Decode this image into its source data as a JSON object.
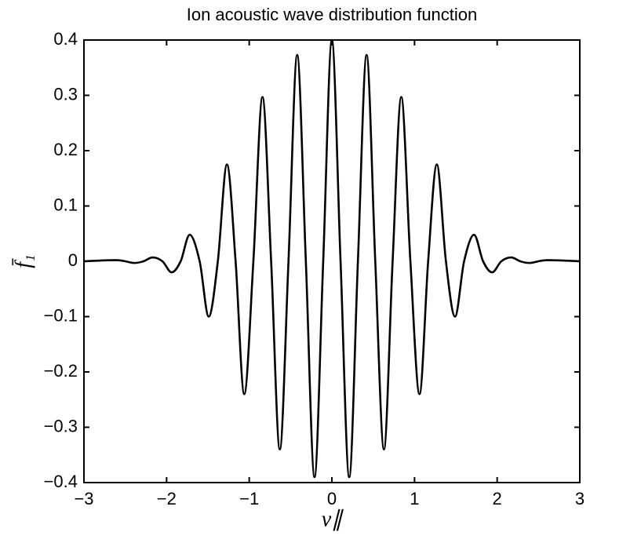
{
  "chart_data": {
    "type": "line",
    "title": "Ion acoustic wave distribution function",
    "xlabel": "v∥",
    "ylabel": "f̄₁",
    "series": [
      {
        "name": "f1",
        "color": "#000000",
        "x": [
          -3,
          -2.6,
          -2.4,
          -2.28,
          -2.17,
          -2.05,
          -1.94,
          -1.83,
          -1.72,
          -1.6,
          -1.49,
          -1.38,
          -1.27,
          -1.165,
          -1.06,
          -0.95,
          -0.84,
          -0.735,
          -0.63,
          -0.525,
          -0.42,
          -0.315,
          -0.21,
          -0.105,
          0,
          0.105,
          0.21,
          0.315,
          0.42,
          0.525,
          0.63,
          0.735,
          0.84,
          0.95,
          1.06,
          1.165,
          1.27,
          1.38,
          1.49,
          1.6,
          1.72,
          1.83,
          1.94,
          2.05,
          2.17,
          2.28,
          2.4,
          2.6,
          3
        ],
        "values": [
          0,
          0.002,
          -0.003,
          0,
          0.007,
          0,
          -0.02,
          0,
          0.048,
          0,
          -0.1,
          0,
          0.175,
          0,
          -0.24,
          0,
          0.297,
          0,
          -0.34,
          0,
          0.373,
          0,
          -0.39,
          0,
          0.4,
          0,
          -0.39,
          0,
          0.373,
          0,
          -0.34,
          0,
          0.297,
          0,
          -0.24,
          0,
          0.175,
          0,
          -0.1,
          0,
          0.048,
          0,
          -0.02,
          0,
          0.007,
          0,
          -0.003,
          0.002,
          0
        ]
      }
    ],
    "xlim": [
      -3,
      3
    ],
    "xticks": [
      {
        "value": -3,
        "label": "−3"
      },
      {
        "value": -2,
        "label": "−2"
      },
      {
        "value": -1,
        "label": "−1"
      },
      0,
      1,
      2,
      3
    ],
    "ylim": [
      -0.4,
      0.4
    ],
    "yticks": [
      {
        "value": -0.4,
        "label": "−0.4"
      },
      {
        "value": -0.3,
        "label": "−0.3"
      },
      {
        "value": -0.2,
        "label": "−0.2"
      },
      {
        "value": -0.1,
        "label": "−0.1"
      },
      0,
      0.1,
      0.2,
      0.3,
      0.4
    ],
    "grid": false
  }
}
